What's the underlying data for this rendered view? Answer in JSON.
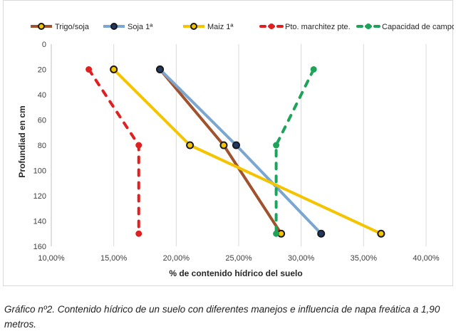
{
  "chart_data": {
    "type": "line",
    "title": "",
    "xlabel": "% de contenido hídrico del suelo",
    "ylabel": "Profundiad en cm",
    "xlim": [
      0.1,
      0.4
    ],
    "ylim": [
      0,
      160
    ],
    "y_inverted": true,
    "x_ticks": [
      0.1,
      0.15,
      0.2,
      0.25,
      0.3,
      0.35,
      0.4
    ],
    "x_tick_labels": [
      "10,00%",
      "15,00%",
      "20,00%",
      "25,00%",
      "30,00%",
      "35,00%",
      "40,00%"
    ],
    "y_ticks": [
      0,
      20,
      40,
      60,
      80,
      100,
      120,
      140,
      160
    ],
    "y_tick_labels": [
      "0",
      "20",
      "40",
      "60",
      "80",
      "100",
      "120",
      "140",
      "160"
    ],
    "grid": "vertical",
    "legend_position": "top",
    "series": [
      {
        "name": "Trigo/soja",
        "color": "#a0522d",
        "dash": "solid",
        "marker_fill": "#f5c400",
        "points": [
          [
            0.187,
            20
          ],
          [
            0.238,
            80
          ],
          [
            0.284,
            150
          ]
        ]
      },
      {
        "name": "Soja 1ª",
        "color": "#7aa6d2",
        "dash": "solid",
        "marker_fill": "#1f3864",
        "points": [
          [
            0.187,
            20
          ],
          [
            0.248,
            80
          ],
          [
            0.316,
            150
          ]
        ]
      },
      {
        "name": "Maiz 1ª",
        "color": "#f5c400",
        "dash": "solid",
        "marker_fill": "#f5c400",
        "points": [
          [
            0.15,
            20
          ],
          [
            0.211,
            80
          ],
          [
            0.364,
            150
          ]
        ]
      },
      {
        "name": "Pto. marchitez pte.",
        "color": "#e02020",
        "dash": "dashed",
        "marker_fill": "#e02020",
        "points": [
          [
            0.13,
            20
          ],
          [
            0.17,
            80
          ],
          [
            0.17,
            150
          ]
        ]
      },
      {
        "name": "Capacidad de campo",
        "color": "#1fa35a",
        "dash": "dashed",
        "marker_fill": "#1fa35a",
        "points": [
          [
            0.31,
            20
          ],
          [
            0.28,
            80
          ],
          [
            0.28,
            150
          ]
        ]
      }
    ]
  },
  "caption": {
    "text": "Gráfico nº2. Contenido hídrico de un suelo con diferentes manejos e influencia de napa freática a 1,90 metros."
  }
}
